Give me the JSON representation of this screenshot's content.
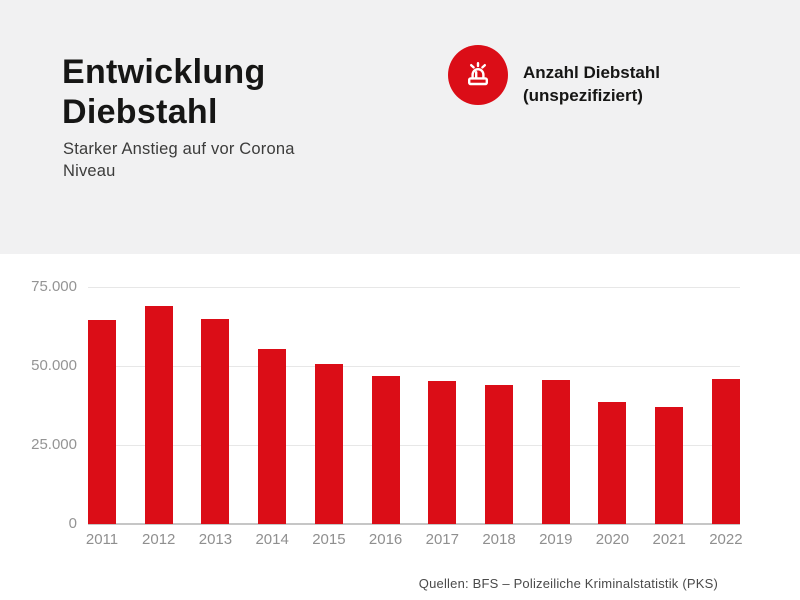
{
  "header": {
    "title": "Entwicklung Diebstahl",
    "subtitle": "Starker Anstieg auf vor Corona Niveau",
    "legend": {
      "icon": "siren-light-icon",
      "label": "Anzahl Diebstahl (unspezifiziert)"
    }
  },
  "chart_data": {
    "type": "bar",
    "title": "Entwicklung Diebstahl",
    "categories": [
      "2011",
      "2012",
      "2013",
      "2014",
      "2015",
      "2016",
      "2017",
      "2018",
      "2019",
      "2020",
      "2021",
      "2022"
    ],
    "values": [
      64500,
      69000,
      64800,
      55300,
      50500,
      46800,
      45300,
      43900,
      45500,
      38700,
      37000,
      45800
    ],
    "series_name": "Anzahl Diebstahl (unspezifiziert)",
    "xlabel": "",
    "ylabel": "",
    "ylim": [
      0,
      75000
    ],
    "yticks": [
      {
        "value": 75000,
        "label": "75.000"
      },
      {
        "value": 50000,
        "label": "50.000"
      },
      {
        "value": 25000,
        "label": "25.000"
      },
      {
        "value": 0,
        "label": "0"
      }
    ],
    "grid": true,
    "legend_position": "top-right",
    "bar_color": "#DB0D17"
  },
  "footer": {
    "source": "Quellen: BFS – Polizeiliche Kriminalstatistik (PKS)"
  },
  "colors": {
    "accent_red": "#DB0D17",
    "header_bg": "#F1F1F2",
    "chart_bg": "#FFFFFF",
    "grid_line": "#E7E7E7",
    "baseline": "#C6C6C6",
    "axis_text": "#949494",
    "title_text": "#161615",
    "subtitle_text": "#3C3C3B",
    "footer_text": "#4A4A4A",
    "icon_glyph": "#FFFFFF"
  }
}
